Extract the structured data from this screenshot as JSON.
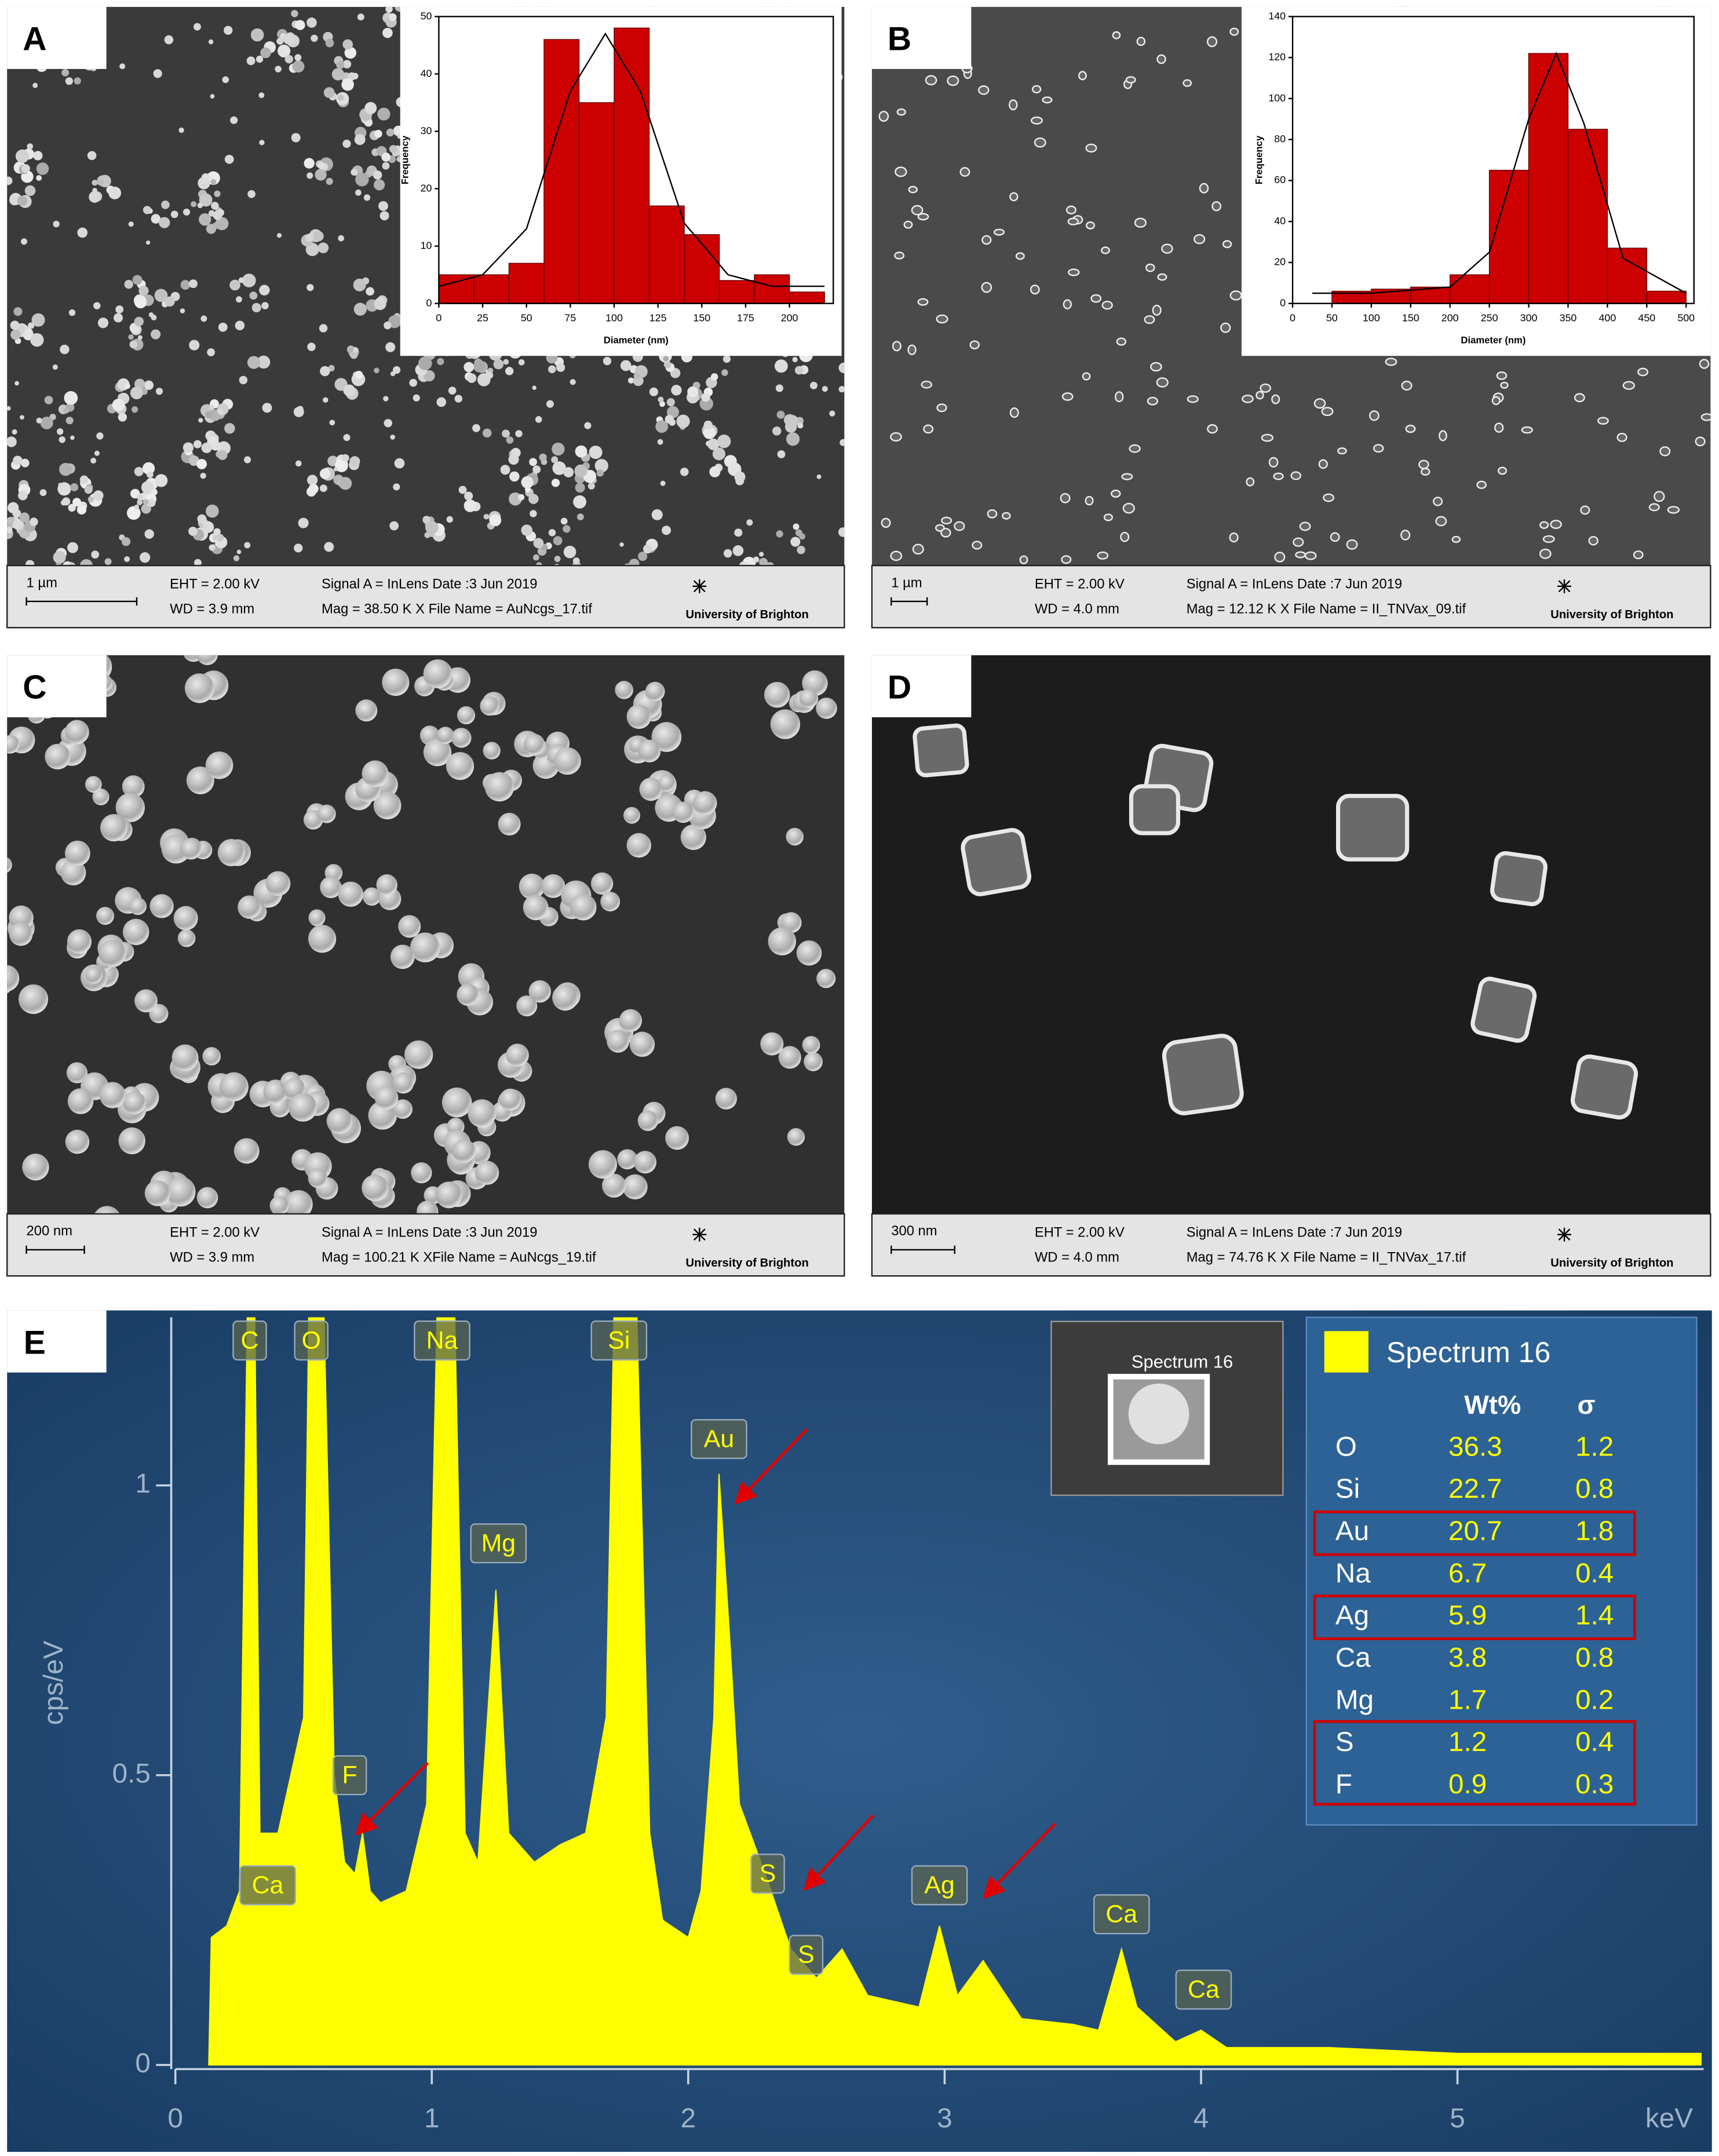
{
  "panel_labels": [
    "A",
    "B",
    "C",
    "D",
    "E"
  ],
  "panels": [
    {
      "scale": "1 µm",
      "eht": "EHT =  2.00 kV",
      "wd": "WD =  3.9 mm",
      "signal": "Signal A = InLens  Date :3 Jun 2019",
      "mag": "Mag =   38.50 K X  File Name = AuNcgs_17.tif",
      "logo": "University of Brighton"
    },
    {
      "scale": "1 µm",
      "eht": "EHT =  2.00 kV",
      "wd": "WD =  4.0 mm",
      "signal": "Signal A = InLens  Date :7 Jun 2019",
      "mag": "Mag =   12.12 K X  File Name = II_TNVax_09.tif",
      "logo": "University of Brighton"
    },
    {
      "scale": "200 nm",
      "eht": "EHT =  2.00 kV",
      "wd": "WD =  3.9 mm",
      "signal": "Signal A = InLens  Date :3 Jun 2019",
      "mag": "Mag =  100.21 K XFile Name = AuNcgs_19.tif",
      "logo": "University of Brighton"
    },
    {
      "scale": "300 nm",
      "eht": "EHT =  2.00 kV",
      "wd": "WD =  4.0 mm",
      "signal": "Signal A = InLens  Date :7 Jun 2019",
      "mag": "Mag =   74.76 K X  File Name = II_TNVax_17.tif",
      "logo": "University of Brighton"
    }
  ],
  "chart_data": [
    {
      "type": "histogram",
      "xlabel": "Diameter (nm)",
      "ylabel": "Frequency",
      "color": "#cc0000",
      "bins": [
        0,
        20,
        40,
        60,
        80,
        100,
        120,
        140,
        160,
        180,
        200,
        220
      ],
      "values": [
        5,
        5,
        7,
        46,
        35,
        48,
        17,
        12,
        4,
        5,
        2
      ],
      "fit": {
        "x": [
          0,
          25,
          50,
          75,
          95,
          115,
          140,
          165,
          190,
          220
        ],
        "values": [
          3,
          5,
          13,
          37,
          47,
          37,
          14,
          5,
          3,
          3
        ]
      },
      "xlim": [
        0,
        225
      ],
      "ylim": [
        0,
        50
      ],
      "xticks": [
        0,
        25,
        50,
        75,
        100,
        125,
        150,
        175,
        200
      ],
      "yticks": [
        0,
        10,
        20,
        30,
        40,
        50
      ]
    },
    {
      "type": "histogram",
      "xlabel": "Diameter (nm)",
      "ylabel": "Frequency",
      "color": "#cc0000",
      "bins": [
        50,
        100,
        150,
        200,
        250,
        300,
        350,
        400,
        450,
        500
      ],
      "values": [
        6,
        7,
        8,
        14,
        65,
        122,
        85,
        27,
        6
      ],
      "fit": {
        "x": [
          25,
          100,
          200,
          250,
          300,
          335,
          370,
          420,
          500
        ],
        "values": [
          5,
          5,
          8,
          25,
          90,
          122,
          88,
          22,
          5
        ]
      },
      "xlim": [
        0,
        510
      ],
      "ylim": [
        0,
        140
      ],
      "xticks": [
        0,
        50,
        100,
        150,
        200,
        250,
        300,
        350,
        400,
        450,
        500
      ],
      "yticks": [
        0,
        20,
        40,
        60,
        80,
        100,
        120,
        140
      ]
    },
    {
      "type": "area",
      "xlabel": "keV",
      "ylabel": "cps/eV",
      "color": "#ffff00",
      "x": [
        0.13,
        0.14,
        0.2,
        0.25,
        0.28,
        0.31,
        0.33,
        0.4,
        0.45,
        0.5,
        0.52,
        0.58,
        0.62,
        0.66,
        0.7,
        0.73,
        0.76,
        0.8,
        0.9,
        0.98,
        1.02,
        1.09,
        1.13,
        1.18,
        1.25,
        1.3,
        1.4,
        1.5,
        1.6,
        1.68,
        1.71,
        1.8,
        1.85,
        1.9,
        2.0,
        2.05,
        2.1,
        2.12,
        2.16,
        2.2,
        2.3,
        2.4,
        2.5,
        2.6,
        2.7,
        2.9,
        2.98,
        3.05,
        3.15,
        3.3,
        3.5,
        3.6,
        3.69,
        3.75,
        3.9,
        4.0,
        4.1,
        4.5,
        5,
        5.5,
        5.95
      ],
      "values": [
        0,
        0.22,
        0.24,
        0.3,
        1.29,
        1.29,
        0.4,
        0.4,
        0.5,
        0.6,
        1.29,
        1.29,
        0.5,
        0.35,
        0.33,
        0.4,
        0.3,
        0.28,
        0.3,
        0.45,
        1.29,
        1.29,
        0.4,
        0.35,
        0.82,
        0.4,
        0.35,
        0.38,
        0.4,
        0.6,
        1.29,
        1.29,
        0.4,
        0.25,
        0.22,
        0.3,
        0.6,
        1.02,
        0.75,
        0.45,
        0.33,
        0.2,
        0.15,
        0.2,
        0.12,
        0.1,
        0.24,
        0.12,
        0.18,
        0.08,
        0.07,
        0.06,
        0.2,
        0.1,
        0.04,
        0.06,
        0.03,
        0.03,
        0.02,
        0.02,
        0.02
      ],
      "xlim": [
        0,
        5.96
      ],
      "ylim": [
        0,
        1.29
      ],
      "xticks": [
        0,
        1,
        2,
        3,
        4,
        5
      ],
      "yticks": [
        0,
        0.5,
        1
      ],
      "annotations": [
        {
          "label": "C",
          "x": 0.29,
          "y": 1.25
        },
        {
          "label": "O",
          "x": 0.53,
          "y": 1.25
        },
        {
          "label": "Na",
          "x": 1.04,
          "y": 1.25
        },
        {
          "label": "Si",
          "x": 1.73,
          "y": 1.25
        },
        {
          "label": "Au",
          "x": 2.12,
          "y": 1.08
        },
        {
          "label": "Mg",
          "x": 1.26,
          "y": 0.9
        },
        {
          "label": "F",
          "x": 0.68,
          "y": 0.5
        },
        {
          "label": "Ca",
          "x": 0.36,
          "y": 0.31
        },
        {
          "label": "S",
          "x": 2.31,
          "y": 0.33
        },
        {
          "label": "S",
          "x": 2.46,
          "y": 0.19
        },
        {
          "label": "Ag",
          "x": 2.98,
          "y": 0.31
        },
        {
          "label": "Ca",
          "x": 3.69,
          "y": 0.26
        },
        {
          "label": "Ca",
          "x": 4.01,
          "y": 0.13
        }
      ]
    }
  ],
  "inset_label": "Spectrum 16",
  "table": {
    "title": "Spectrum 16",
    "columns": [
      "Wt%",
      "σ"
    ],
    "rows": [
      [
        "O",
        36.3,
        1.2
      ],
      [
        "Si",
        22.7,
        0.8
      ],
      [
        "Au",
        20.7,
        1.8
      ],
      [
        "Na",
        6.7,
        0.4
      ],
      [
        "Ag",
        5.9,
        1.4
      ],
      [
        "Ca",
        3.8,
        0.8
      ],
      [
        "Mg",
        1.7,
        0.2
      ],
      [
        "S",
        1.2,
        0.4
      ],
      [
        "F",
        0.9,
        0.3
      ]
    ]
  }
}
